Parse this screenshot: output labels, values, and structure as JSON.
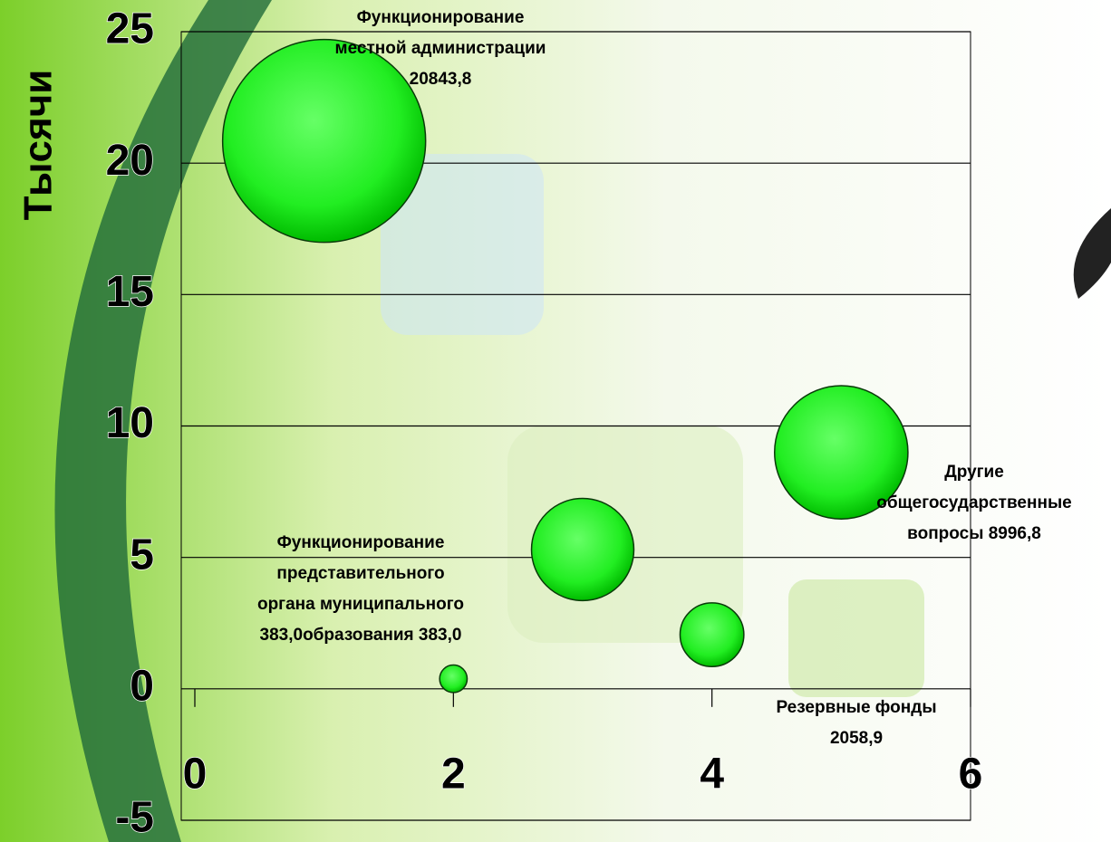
{
  "chart_data": {
    "type": "bubble",
    "y_axis_label": "Тысячи",
    "x": [
      1,
      2,
      3,
      4,
      5
    ],
    "values": [
      20.8438,
      0.383,
      5.3,
      2.0589,
      8.9968
    ],
    "data_labels": [
      [
        "Функционирование",
        "местной администрации",
        "20843,8"
      ],
      [
        "Функционирование",
        "представительного",
        "органа муниципального",
        "383,0образования 383,0"
      ],
      null,
      [
        "Резервные фонды",
        "2058,9"
      ],
      [
        "Другие",
        "общегосударственные",
        "вопросы 8996,8"
      ]
    ],
    "color": "#22ee22",
    "xlim": [
      0,
      6
    ],
    "xticks": [
      0,
      2,
      4,
      6
    ],
    "ylim": [
      -5,
      25
    ],
    "yticks": [
      -5,
      0,
      5,
      10,
      15,
      20,
      25
    ],
    "grid": true
  }
}
